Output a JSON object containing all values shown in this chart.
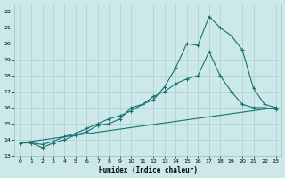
{
  "xlabel": "Humidex (Indice chaleur)",
  "bg_color": "#cce8e8",
  "grid_color": "#aad0d0",
  "line_color": "#1a7070",
  "xlim": [
    -0.5,
    23.5
  ],
  "ylim": [
    13.0,
    22.5
  ],
  "yticks": [
    13,
    14,
    15,
    16,
    17,
    18,
    19,
    20,
    21,
    22
  ],
  "xticks": [
    0,
    1,
    2,
    3,
    4,
    5,
    6,
    7,
    8,
    9,
    10,
    11,
    12,
    13,
    14,
    15,
    16,
    17,
    18,
    19,
    20,
    21,
    22,
    23
  ],
  "xtick_labels": [
    "0",
    "1",
    "2",
    "3",
    "4",
    "5",
    "6",
    "7",
    "8",
    "9",
    "10",
    "11",
    "12",
    "13",
    "14",
    "15",
    "16",
    "17",
    "18",
    "19",
    "20",
    "21",
    "22",
    "23"
  ],
  "line1_x": [
    0,
    1,
    2,
    3,
    4,
    5,
    6,
    7,
    8,
    9,
    10,
    11,
    12,
    13,
    14,
    15,
    16,
    17,
    18,
    19,
    20,
    21,
    22,
    23
  ],
  "line1_y": [
    13.8,
    13.8,
    13.5,
    13.8,
    14.0,
    14.3,
    14.5,
    14.9,
    15.0,
    15.3,
    16.0,
    16.2,
    16.5,
    17.3,
    18.5,
    20.0,
    19.9,
    21.7,
    21.0,
    20.5,
    19.6,
    17.2,
    16.2,
    16.0
  ],
  "line2_x": [
    0,
    1,
    2,
    3,
    4,
    5,
    6,
    7,
    8,
    9,
    10,
    11,
    12,
    13,
    14,
    15,
    16,
    17,
    18,
    19,
    20,
    21,
    22,
    23
  ],
  "line2_y": [
    13.8,
    13.8,
    13.7,
    13.9,
    14.2,
    14.4,
    14.7,
    15.0,
    15.3,
    15.5,
    15.8,
    16.2,
    16.7,
    17.0,
    17.5,
    17.8,
    18.0,
    19.5,
    18.0,
    17.0,
    16.2,
    16.0,
    16.0,
    15.9
  ],
  "line3_x": [
    0,
    23
  ],
  "line3_y": [
    13.8,
    16.0
  ]
}
